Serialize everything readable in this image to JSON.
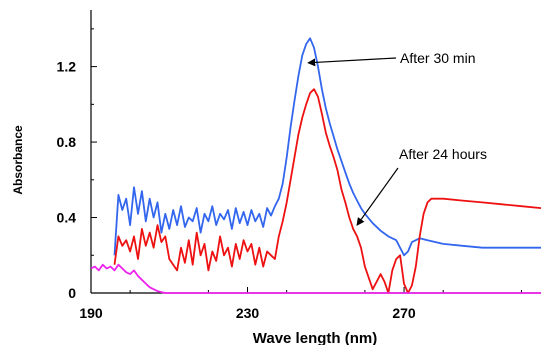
{
  "chart_data": {
    "type": "line",
    "xlabel": "Wave length (nm)",
    "ylabel": "Absorbance",
    "xlim": [
      190,
      305
    ],
    "ylim": [
      0,
      1.5
    ],
    "x_ticks": [
      190,
      230,
      270
    ],
    "x_tick_labels": [
      "190",
      "230",
      "270"
    ],
    "y_ticks": [
      0,
      0.4,
      0.8,
      1.2
    ],
    "y_tick_labels": [
      "0",
      "0.4",
      "0.8",
      "1.2"
    ],
    "grid": false,
    "annotations": [
      {
        "text": "After 30 min",
        "points_to": [
          245.5,
          1.22
        ]
      },
      {
        "text": "After 24 hours",
        "points_to": [
          258,
          0.36
        ]
      }
    ],
    "series": [
      {
        "name": "",
        "color": "#3366ee",
        "x": [
          196.0,
          197.0,
          198.0,
          199.0,
          200.0,
          201.0,
          202.0,
          203.0,
          204.0,
          205.0,
          206.0,
          207.0,
          208.0,
          209.0,
          210.0,
          211.0,
          212.0,
          213.0,
          214.0,
          215.0,
          216.0,
          217.0,
          218.0,
          219.0,
          220.0,
          221.0,
          222.0,
          223.0,
          224.0,
          225.0,
          226.0,
          227.0,
          228.0,
          229.0,
          230.0,
          231.0,
          232.0,
          233.0,
          234.0,
          235.0,
          236.0,
          237.0,
          238.0,
          239.0,
          240.0,
          241.0,
          242.0,
          243.0,
          244.0,
          245.0,
          246.0,
          247.0,
          248.0,
          249.0,
          250.0,
          251.0,
          252.0,
          253.0,
          254.0,
          255.0,
          256.0,
          257.0,
          258.0,
          259.0,
          260.0,
          262.0,
          264.0,
          266.0,
          268.0,
          270.0,
          271.0,
          272.0,
          274.0,
          276.0,
          280.0,
          285.0,
          290.0,
          295.0,
          300.0,
          305.0
        ],
        "y": [
          0.2,
          0.52,
          0.44,
          0.5,
          0.36,
          0.56,
          0.42,
          0.54,
          0.38,
          0.5,
          0.4,
          0.48,
          0.32,
          0.42,
          0.34,
          0.44,
          0.36,
          0.46,
          0.35,
          0.4,
          0.38,
          0.45,
          0.32,
          0.42,
          0.38,
          0.46,
          0.36,
          0.42,
          0.39,
          0.44,
          0.34,
          0.45,
          0.37,
          0.43,
          0.36,
          0.44,
          0.38,
          0.42,
          0.35,
          0.45,
          0.41,
          0.46,
          0.5,
          0.58,
          0.72,
          0.88,
          1.02,
          1.15,
          1.26,
          1.32,
          1.35,
          1.3,
          1.2,
          1.08,
          0.98,
          0.9,
          0.83,
          0.76,
          0.7,
          0.64,
          0.58,
          0.53,
          0.49,
          0.45,
          0.42,
          0.37,
          0.33,
          0.3,
          0.28,
          0.2,
          0.22,
          0.27,
          0.29,
          0.28,
          0.26,
          0.25,
          0.24,
          0.24,
          0.24,
          0.24
        ]
      },
      {
        "name": "",
        "color": "#ee1111",
        "x": [
          196.0,
          197.0,
          198.0,
          199.0,
          200.0,
          201.0,
          202.0,
          203.0,
          204.0,
          205.0,
          206.0,
          207.0,
          208.0,
          209.0,
          210.0,
          211.0,
          212.0,
          213.0,
          214.0,
          215.0,
          216.0,
          217.0,
          218.0,
          219.0,
          220.0,
          221.0,
          222.0,
          223.0,
          224.0,
          225.0,
          226.0,
          227.0,
          228.0,
          229.0,
          230.0,
          231.0,
          232.0,
          233.0,
          234.0,
          235.0,
          236.0,
          237.0,
          238.0,
          239.0,
          240.0,
          241.0,
          242.0,
          243.0,
          244.0,
          245.0,
          246.0,
          247.0,
          248.0,
          249.0,
          250.0,
          251.0,
          252.0,
          253.0,
          254.0,
          255.0,
          256.0,
          257.0,
          258.0,
          259.0,
          260.0,
          261.0,
          262.0,
          263.0,
          264.0,
          265.0,
          266.0,
          267.0,
          268.0,
          269.0,
          270.0,
          271.0,
          272.0,
          273.0,
          274.0,
          275.0,
          276.0,
          277.0,
          278.0,
          280.0,
          285.0,
          290.0,
          295.0,
          300.0,
          305.0
        ],
        "y": [
          0.15,
          0.3,
          0.25,
          0.28,
          0.22,
          0.3,
          0.18,
          0.34,
          0.25,
          0.32,
          0.24,
          0.36,
          0.27,
          0.3,
          0.18,
          0.15,
          0.12,
          0.24,
          0.16,
          0.28,
          0.15,
          0.32,
          0.2,
          0.26,
          0.12,
          0.22,
          0.17,
          0.3,
          0.2,
          0.24,
          0.14,
          0.26,
          0.18,
          0.28,
          0.22,
          0.26,
          0.15,
          0.24,
          0.14,
          0.22,
          0.2,
          0.18,
          0.3,
          0.38,
          0.48,
          0.6,
          0.72,
          0.84,
          0.93,
          1.0,
          1.06,
          1.08,
          1.04,
          0.95,
          0.85,
          0.78,
          0.72,
          0.65,
          0.55,
          0.48,
          0.4,
          0.34,
          0.3,
          0.24,
          0.14,
          0.08,
          0.02,
          0.06,
          0.1,
          0.06,
          0.0,
          0.12,
          0.18,
          0.2,
          0.05,
          0.0,
          0.04,
          0.14,
          0.3,
          0.42,
          0.48,
          0.5,
          0.5,
          0.5,
          0.49,
          0.48,
          0.47,
          0.46,
          0.45
        ]
      },
      {
        "name": "",
        "color": "#ee22ee",
        "x": [
          190.0,
          191.0,
          192.0,
          193.0,
          194.0,
          195.0,
          196.0,
          197.0,
          198.0,
          199.0,
          200.0,
          201.0,
          202.0,
          203.0,
          204.0,
          205.0,
          206.0,
          207.0,
          208.0,
          209.0,
          210.0,
          215.0,
          220.0,
          230.0,
          240.0,
          250.0,
          260.0,
          270.0,
          280.0,
          290.0,
          300.0,
          305.0
        ],
        "y": [
          0.13,
          0.14,
          0.12,
          0.15,
          0.13,
          0.14,
          0.12,
          0.15,
          0.13,
          0.11,
          0.1,
          0.12,
          0.09,
          0.07,
          0.05,
          0.03,
          0.02,
          0.01,
          0.005,
          0.0,
          0.0,
          0.0,
          0.0,
          0.0,
          0.0,
          0.0,
          0.0,
          0.0,
          0.0,
          0.0,
          0.0,
          0.0
        ]
      }
    ]
  }
}
